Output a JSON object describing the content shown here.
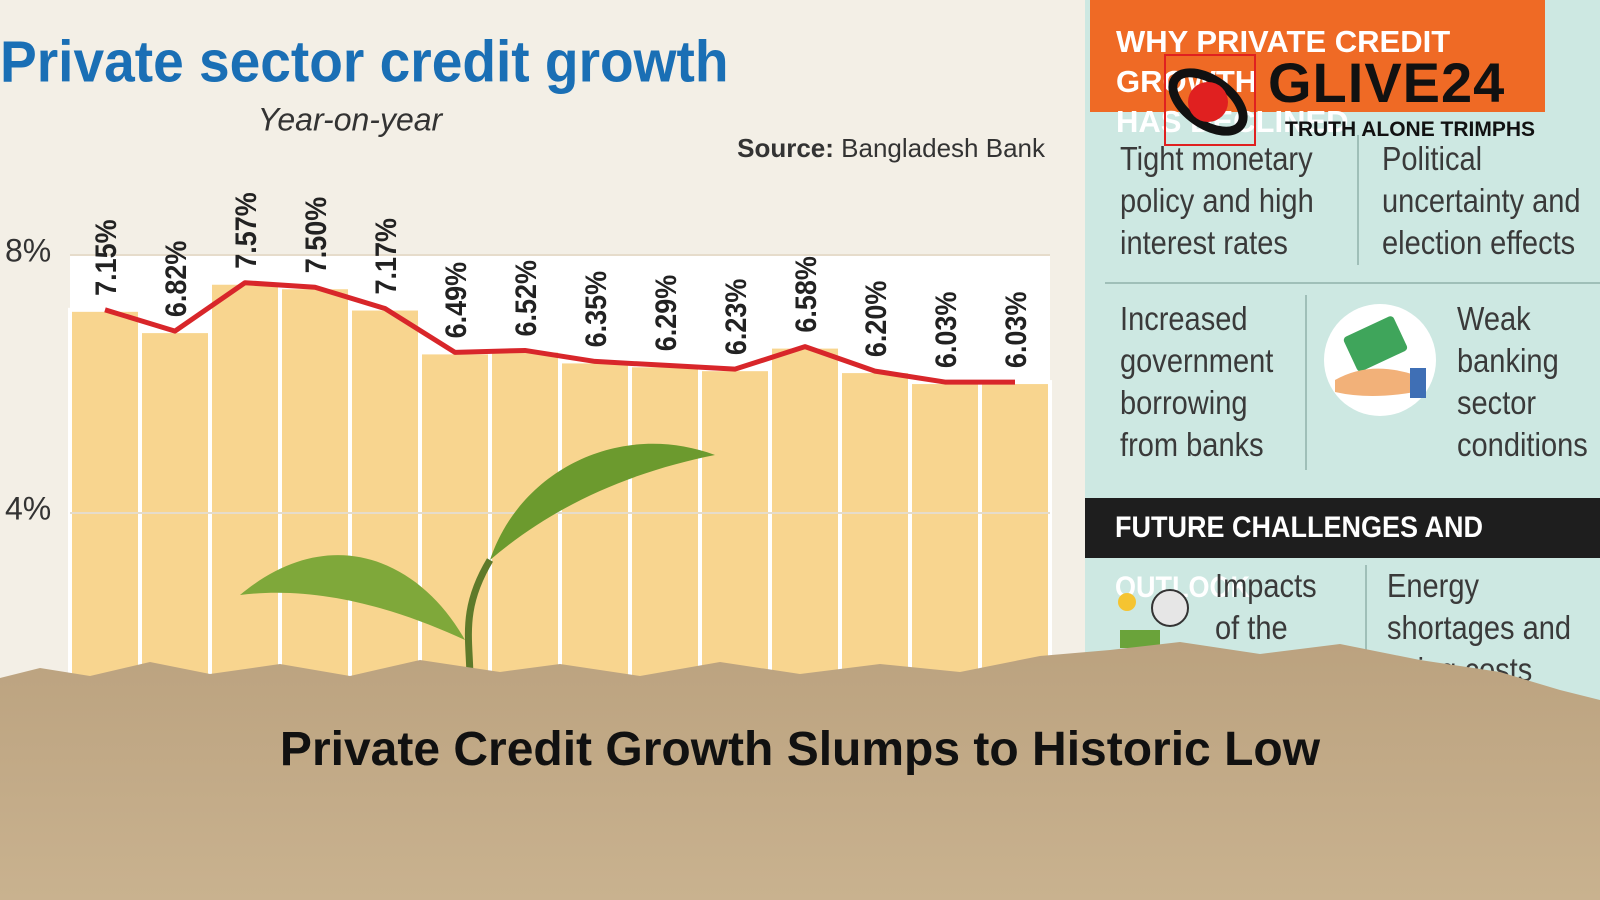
{
  "chart_data": {
    "type": "bar",
    "title": "Private sector credit growth",
    "subtitle": "Year-on-year",
    "source_label": "Source:",
    "source": "Bangladesh Bank",
    "values": [
      7.15,
      6.82,
      7.57,
      7.5,
      7.17,
      6.49,
      6.52,
      6.35,
      6.29,
      6.23,
      6.58,
      6.2,
      6.03,
      6.03
    ],
    "value_labels": [
      "7.15%",
      "6.82%",
      "7.57%",
      "7.50%",
      "7.17%",
      "6.49%",
      "6.52%",
      "6.35%",
      "6.29%",
      "6.23%",
      "6.58%",
      "6.20%",
      "6.03%",
      "6.03%"
    ],
    "color": "#f8d58f",
    "line_color": "#d8262a",
    "ylim": [
      0,
      8
    ],
    "yticks": [
      {
        "value": 4,
        "label": "4%"
      },
      {
        "value": 8,
        "label": "8%"
      }
    ],
    "grid": true
  },
  "panel": {
    "why_title": [
      "WHY PRIVATE CREDIT GROWTH",
      "HAS DECLINED"
    ],
    "reasons": [
      "Tight monetary policy and high interest rates",
      "Political uncertainty and election effects",
      "Increased government borrowing from banks",
      "Weak banking sector conditions"
    ],
    "future_title": "FUTURE CHALLENGES AND OUTLOOK",
    "challenges": [
      "Impacts of the",
      "Energy shortages and rising costs"
    ]
  },
  "logo": {
    "name": "GLIVE24",
    "tagline": "TRUTH ALONE TRIMPHS"
  },
  "headline": "Private Credit Growth Slumps to Historic Low"
}
